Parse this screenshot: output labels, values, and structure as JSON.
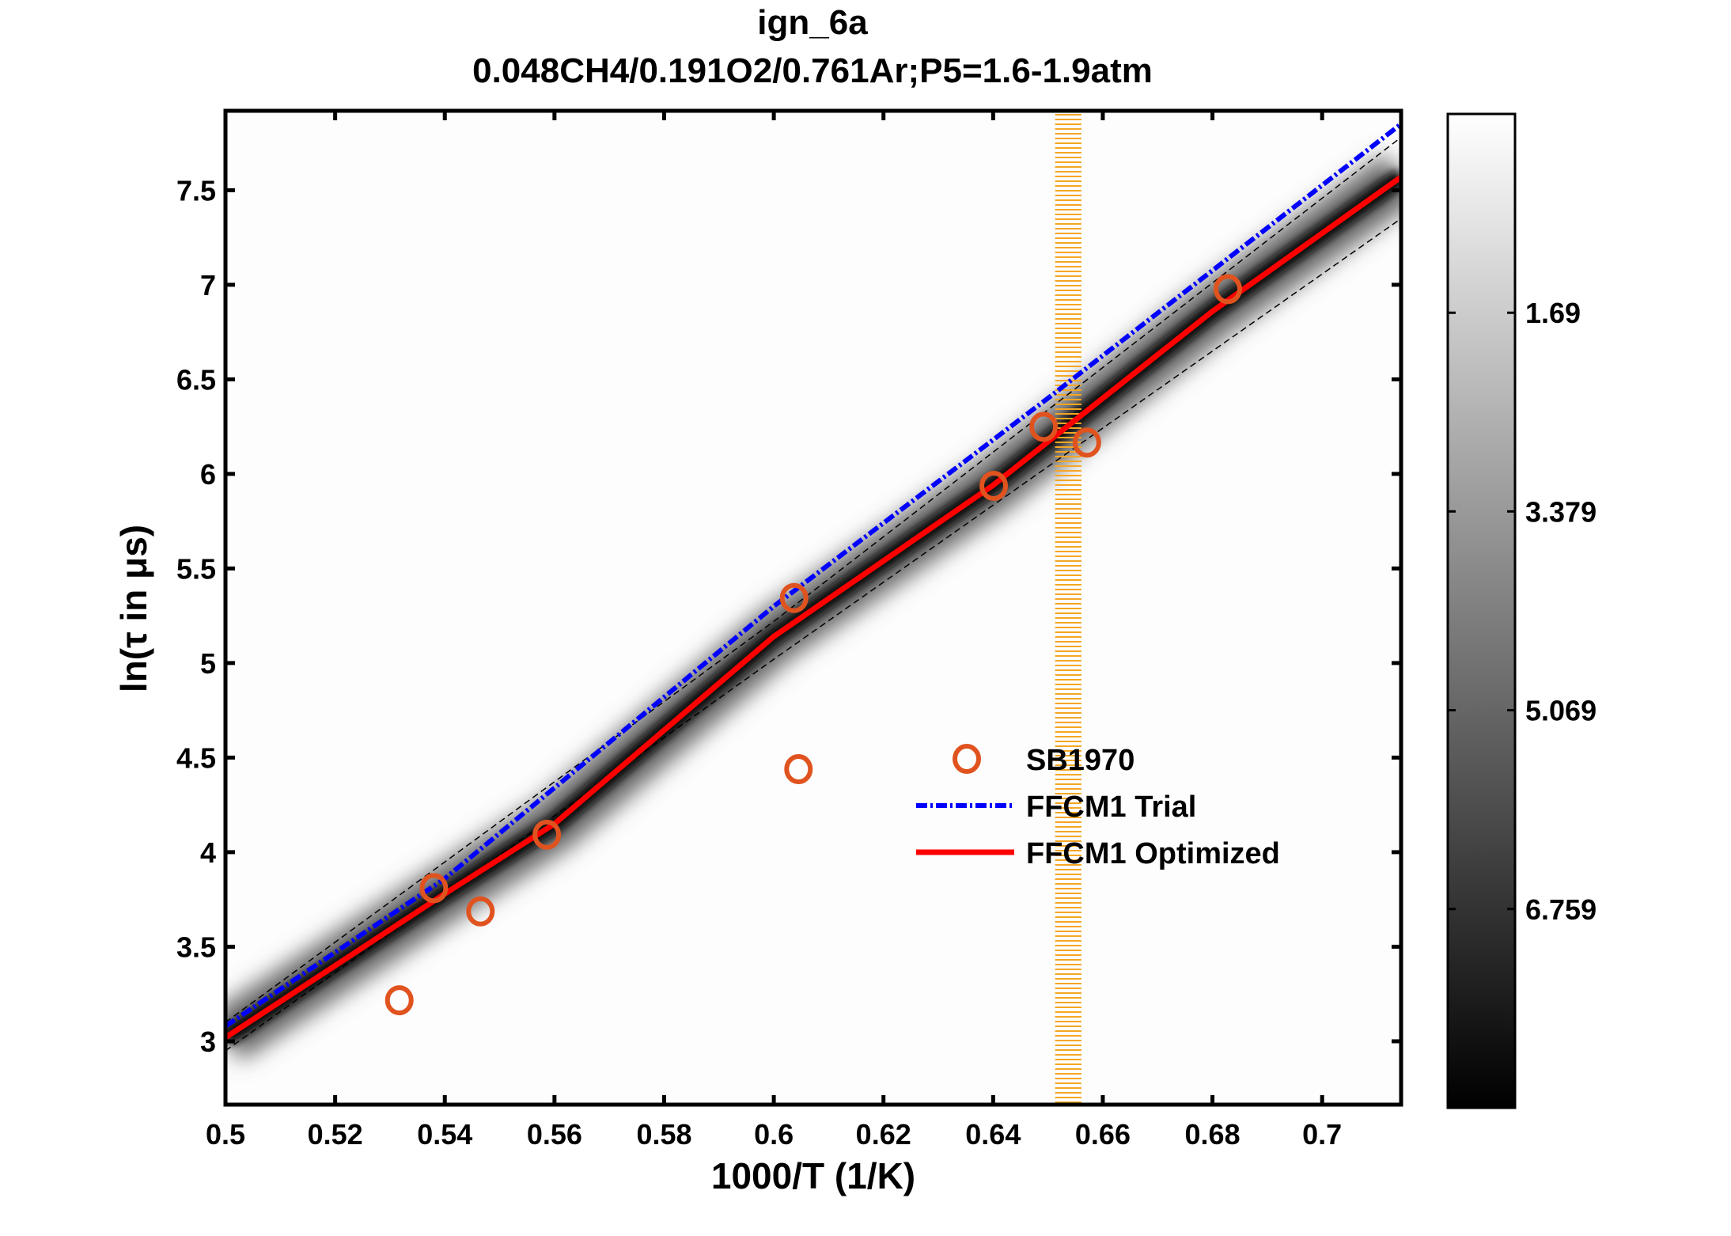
{
  "chart_data": {
    "type": "line",
    "title": "ign_6a",
    "subtitle": "0.048CH4/0.191O2/0.761Ar;P5=1.6-1.9atm",
    "xlabel": "1000/T (1/K)",
    "ylabel": "ln(τ in μs)",
    "xlim": [
      0.5,
      0.7144
    ],
    "ylim": [
      2.665,
      7.92
    ],
    "xticks": [
      "0.5",
      "0.52",
      "0.54",
      "0.56",
      "0.58",
      "0.6",
      "0.62",
      "0.64",
      "0.66",
      "0.68",
      "0.7"
    ],
    "yticks": [
      "3",
      "3.5",
      "4",
      "4.5",
      "5",
      "5.5",
      "6",
      "6.5",
      "7",
      "7.5"
    ],
    "grid": false,
    "legend_placement": "center-right",
    "series": [
      {
        "name": "SB1970",
        "kind": "scatter",
        "marker": "circle-open",
        "color": "#e0531f",
        "x": [
          0.5317,
          0.538,
          0.5465,
          0.5586,
          0.6037,
          0.6045,
          0.6401,
          0.6492,
          0.6571,
          0.6828
        ],
        "y": [
          3.217,
          3.81,
          3.687,
          4.092,
          5.344,
          4.439,
          5.937,
          6.249,
          6.166,
          6.977
        ]
      },
      {
        "name": "FFCM1 Trial",
        "kind": "line",
        "style": "dash-dot",
        "color": "#0000ff",
        "x": [
          0.5,
          0.54,
          0.6,
          0.65,
          0.7144
        ],
        "y": [
          3.08,
          3.86,
          5.3,
          6.4,
          7.85
        ]
      },
      {
        "name": "FFCM1 Optimized",
        "kind": "line",
        "style": "solid",
        "color": "#ff0000",
        "x": [
          0.5,
          0.54,
          0.56,
          0.6,
          0.64,
          0.68,
          0.7144
        ],
        "y": [
          3.02,
          3.78,
          4.15,
          5.14,
          5.94,
          6.86,
          7.57
        ]
      }
    ],
    "uncertainty_bounds": {
      "style": "dashed",
      "color": "#000000",
      "x": [
        0.5,
        0.6,
        0.7144
      ],
      "upper": [
        3.1,
        5.22,
        7.78
      ],
      "lower": [
        2.95,
        5.02,
        7.35
      ]
    },
    "highlight_band": {
      "x_range": [
        0.6513,
        0.6561
      ],
      "color": "#f5a623"
    },
    "colorbar": {
      "colormap": "gray-reversed",
      "clim": [
        0,
        8.449
      ],
      "ticks": [
        "1.69",
        "3.379",
        "5.069",
        "6.759"
      ],
      "tick_values": [
        1.69,
        3.379,
        5.069,
        6.759
      ]
    }
  }
}
